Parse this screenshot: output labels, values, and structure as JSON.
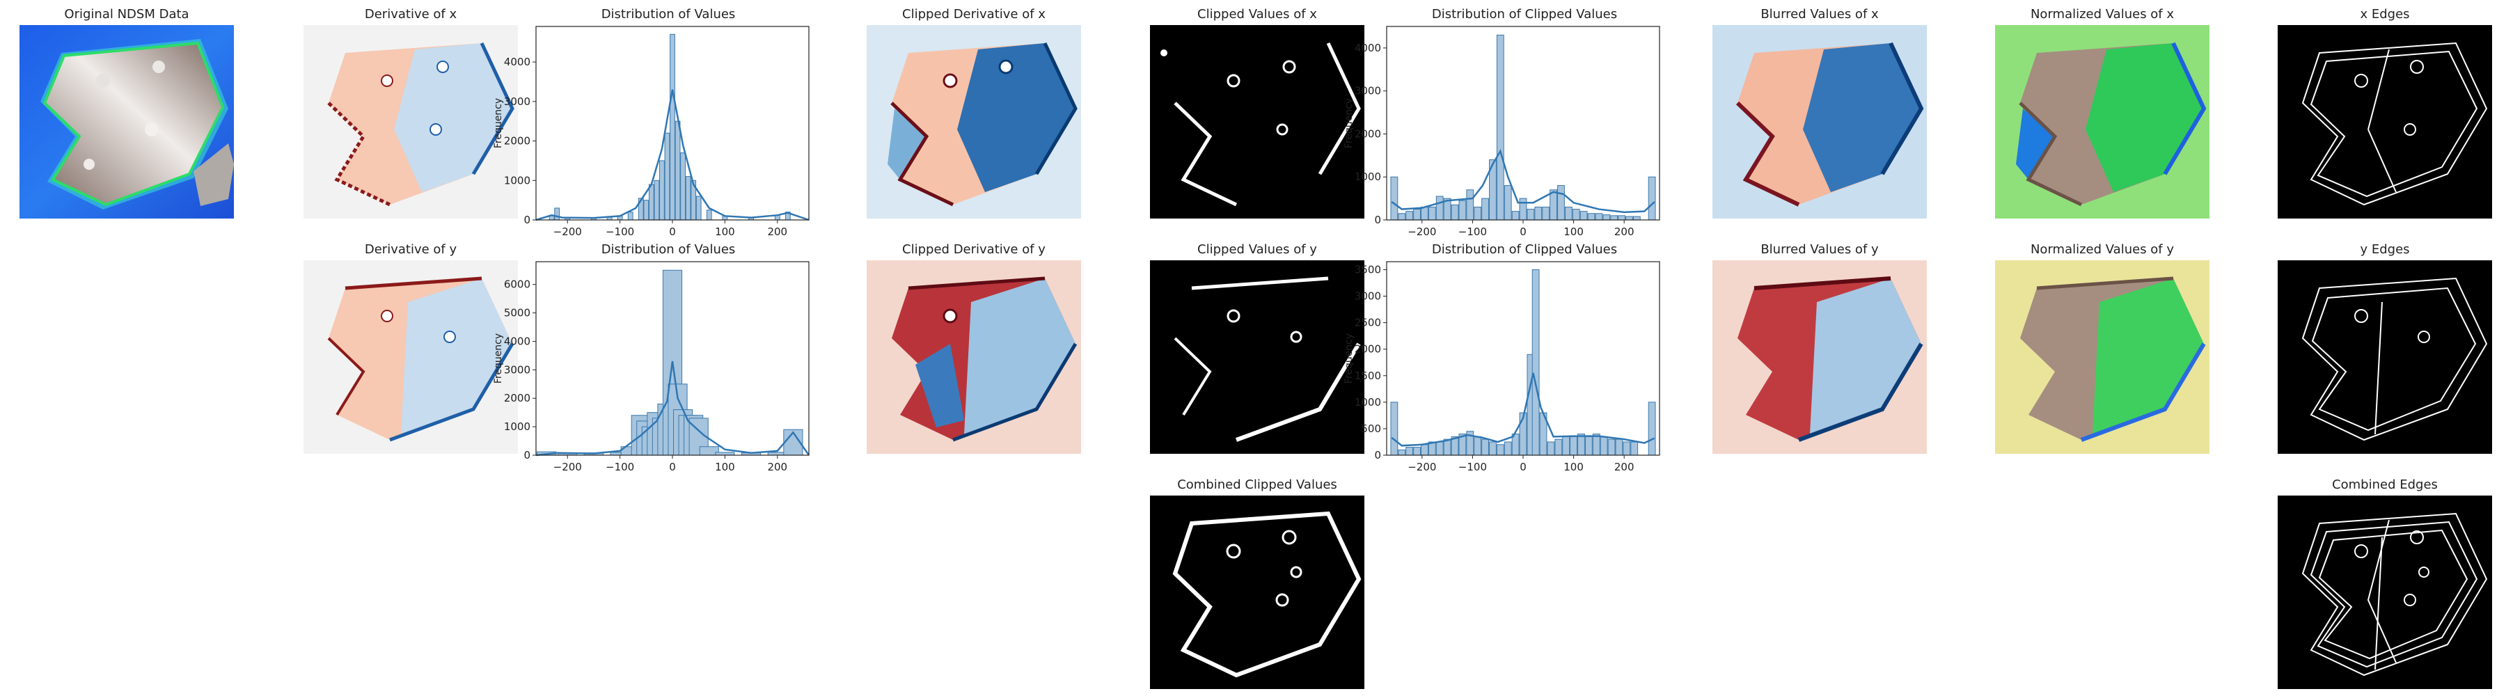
{
  "panels": {
    "original": "Original NDSM Data",
    "deriv_x": "Derivative of x",
    "deriv_y": "Derivative of y",
    "dist_x": "Distribution of Values",
    "dist_y": "Distribution of Values",
    "clip_deriv_x": "Clipped Derivative of x",
    "clip_deriv_y": "Clipped Derivative of y",
    "clip_vals_x": "Clipped Values  of x",
    "clip_vals_y": "Clipped Values  of y",
    "combined_clip": "Combined Clipped Values",
    "dist_clip_x": "Distribution of Clipped Values",
    "dist_clip_y": "Distribution of Clipped Values",
    "blur_x": "Blurred Values of x",
    "blur_y": "Blurred Values of y",
    "norm_x": "Normalized Values of x",
    "norm_y": "Normalized Values of y",
    "edges_x": "x Edges",
    "edges_y": "y Edges",
    "edges_combined": "Combined Edges"
  },
  "colors": {
    "hist_bar": "#a6c4de",
    "hist_edge": "#3b78ab",
    "kde": "#2f77b4"
  },
  "chart_data": [
    {
      "type": "bar",
      "title": "Distribution of Values",
      "ylabel": "Frequency",
      "xlim": [
        -260,
        260
      ],
      "ylim": [
        0,
        4900
      ],
      "xticks": [
        -200,
        -100,
        0,
        100,
        200
      ],
      "yticks": [
        0,
        1000,
        2000,
        3000,
        4000
      ],
      "bins": [
        {
          "x": -230,
          "y": 120
        },
        {
          "x": -220,
          "y": 300
        },
        {
          "x": -200,
          "y": 60
        },
        {
          "x": -150,
          "y": 60
        },
        {
          "x": -120,
          "y": 80
        },
        {
          "x": -100,
          "y": 100
        },
        {
          "x": -80,
          "y": 200
        },
        {
          "x": -60,
          "y": 550
        },
        {
          "x": -50,
          "y": 500
        },
        {
          "x": -40,
          "y": 900
        },
        {
          "x": -30,
          "y": 1000
        },
        {
          "x": -20,
          "y": 1500
        },
        {
          "x": -10,
          "y": 2200
        },
        {
          "x": 0,
          "y": 4700
        },
        {
          "x": 10,
          "y": 2500
        },
        {
          "x": 20,
          "y": 1700
        },
        {
          "x": 30,
          "y": 1100
        },
        {
          "x": 40,
          "y": 1000
        },
        {
          "x": 50,
          "y": 600
        },
        {
          "x": 70,
          "y": 250
        },
        {
          "x": 100,
          "y": 100
        },
        {
          "x": 150,
          "y": 60
        },
        {
          "x": 200,
          "y": 120
        },
        {
          "x": 220,
          "y": 200
        }
      ],
      "kde": [
        [
          -260,
          0
        ],
        [
          -230,
          120
        ],
        [
          -210,
          60
        ],
        [
          -150,
          50
        ],
        [
          -100,
          100
        ],
        [
          -70,
          300
        ],
        [
          -40,
          900
        ],
        [
          -20,
          1800
        ],
        [
          0,
          3300
        ],
        [
          20,
          1900
        ],
        [
          40,
          900
        ],
        [
          70,
          300
        ],
        [
          100,
          100
        ],
        [
          150,
          60
        ],
        [
          200,
          120
        ],
        [
          220,
          180
        ],
        [
          260,
          0
        ]
      ]
    },
    {
      "type": "bar",
      "title": "Distribution of Values",
      "ylabel": "Frequency",
      "xlim": [
        -260,
        260
      ],
      "ylim": [
        0,
        6800
      ],
      "xticks": [
        -200,
        -100,
        0,
        100,
        200
      ],
      "yticks": [
        0,
        1000,
        2000,
        3000,
        4000,
        5000,
        6000
      ],
      "bins": [
        {
          "x": -240,
          "y": 120
        },
        {
          "x": -200,
          "y": 80
        },
        {
          "x": -150,
          "y": 80
        },
        {
          "x": -100,
          "y": 100
        },
        {
          "x": -80,
          "y": 300
        },
        {
          "x": -60,
          "y": 1400
        },
        {
          "x": -50,
          "y": 1200
        },
        {
          "x": -40,
          "y": 1000
        },
        {
          "x": -30,
          "y": 1500
        },
        {
          "x": -20,
          "y": 1300
        },
        {
          "x": -10,
          "y": 1800
        },
        {
          "x": 0,
          "y": 6500
        },
        {
          "x": 10,
          "y": 2500
        },
        {
          "x": 20,
          "y": 1600
        },
        {
          "x": 30,
          "y": 1400
        },
        {
          "x": 40,
          "y": 1400
        },
        {
          "x": 50,
          "y": 1300
        },
        {
          "x": 70,
          "y": 300
        },
        {
          "x": 100,
          "y": 100
        },
        {
          "x": 150,
          "y": 80
        },
        {
          "x": 200,
          "y": 100
        },
        {
          "x": 230,
          "y": 900
        }
      ],
      "kde": [
        [
          -260,
          0
        ],
        [
          -220,
          80
        ],
        [
          -150,
          60
        ],
        [
          -100,
          150
        ],
        [
          -60,
          700
        ],
        [
          -30,
          1200
        ],
        [
          -10,
          1900
        ],
        [
          0,
          3300
        ],
        [
          10,
          2000
        ],
        [
          30,
          1200
        ],
        [
          60,
          700
        ],
        [
          100,
          200
        ],
        [
          150,
          80
        ],
        [
          200,
          150
        ],
        [
          230,
          800
        ],
        [
          260,
          0
        ]
      ]
    },
    {
      "type": "bar",
      "title": "Distribution of Clipped Values",
      "ylabel": "Frequency",
      "xlim": [
        -270,
        270
      ],
      "ylim": [
        0,
        4500
      ],
      "xticks": [
        -200,
        -100,
        0,
        100,
        200
      ],
      "yticks": [
        0,
        1000,
        2000,
        3000,
        4000
      ],
      "bins": [
        {
          "x": -255,
          "y": 1000
        },
        {
          "x": -240,
          "y": 150
        },
        {
          "x": -225,
          "y": 200
        },
        {
          "x": -210,
          "y": 250
        },
        {
          "x": -195,
          "y": 300
        },
        {
          "x": -180,
          "y": 300
        },
        {
          "x": -165,
          "y": 550
        },
        {
          "x": -150,
          "y": 500
        },
        {
          "x": -135,
          "y": 350
        },
        {
          "x": -120,
          "y": 450
        },
        {
          "x": -105,
          "y": 700
        },
        {
          "x": -90,
          "y": 300
        },
        {
          "x": -75,
          "y": 500
        },
        {
          "x": -60,
          "y": 1400
        },
        {
          "x": -45,
          "y": 4300
        },
        {
          "x": -30,
          "y": 800
        },
        {
          "x": -15,
          "y": 200
        },
        {
          "x": 0,
          "y": 500
        },
        {
          "x": 15,
          "y": 250
        },
        {
          "x": 30,
          "y": 300
        },
        {
          "x": 45,
          "y": 300
        },
        {
          "x": 60,
          "y": 700
        },
        {
          "x": 75,
          "y": 800
        },
        {
          "x": 90,
          "y": 300
        },
        {
          "x": 105,
          "y": 250
        },
        {
          "x": 120,
          "y": 200
        },
        {
          "x": 135,
          "y": 150
        },
        {
          "x": 150,
          "y": 150
        },
        {
          "x": 165,
          "y": 120
        },
        {
          "x": 180,
          "y": 100
        },
        {
          "x": 195,
          "y": 100
        },
        {
          "x": 210,
          "y": 80
        },
        {
          "x": 225,
          "y": 80
        },
        {
          "x": 255,
          "y": 1000
        }
      ],
      "kde": [
        [
          -260,
          420
        ],
        [
          -240,
          250
        ],
        [
          -200,
          280
        ],
        [
          -150,
          450
        ],
        [
          -100,
          500
        ],
        [
          -80,
          800
        ],
        [
          -60,
          1300
        ],
        [
          -45,
          1600
        ],
        [
          -30,
          1000
        ],
        [
          -10,
          400
        ],
        [
          20,
          400
        ],
        [
          60,
          650
        ],
        [
          80,
          600
        ],
        [
          100,
          400
        ],
        [
          150,
          250
        ],
        [
          200,
          180
        ],
        [
          240,
          200
        ],
        [
          260,
          420
        ]
      ]
    },
    {
      "type": "bar",
      "title": "Distribution of Clipped Values",
      "ylabel": "Frequency",
      "xlim": [
        -270,
        270
      ],
      "ylim": [
        0,
        3650
      ],
      "xticks": [
        -200,
        -100,
        0,
        100,
        200
      ],
      "yticks": [
        0,
        500,
        1000,
        1500,
        2000,
        2500,
        3000,
        3500
      ],
      "bins": [
        {
          "x": -255,
          "y": 1000
        },
        {
          "x": -240,
          "y": 100
        },
        {
          "x": -225,
          "y": 150
        },
        {
          "x": -210,
          "y": 150
        },
        {
          "x": -195,
          "y": 200
        },
        {
          "x": -180,
          "y": 250
        },
        {
          "x": -165,
          "y": 250
        },
        {
          "x": -150,
          "y": 300
        },
        {
          "x": -135,
          "y": 350
        },
        {
          "x": -120,
          "y": 400
        },
        {
          "x": -105,
          "y": 450
        },
        {
          "x": -90,
          "y": 350
        },
        {
          "x": -75,
          "y": 300
        },
        {
          "x": -60,
          "y": 250
        },
        {
          "x": -45,
          "y": 200
        },
        {
          "x": -30,
          "y": 250
        },
        {
          "x": -15,
          "y": 400
        },
        {
          "x": 0,
          "y": 800
        },
        {
          "x": 15,
          "y": 1900
        },
        {
          "x": 25,
          "y": 3500
        },
        {
          "x": 40,
          "y": 800
        },
        {
          "x": 55,
          "y": 250
        },
        {
          "x": 70,
          "y": 300
        },
        {
          "x": 85,
          "y": 350
        },
        {
          "x": 100,
          "y": 350
        },
        {
          "x": 115,
          "y": 400
        },
        {
          "x": 130,
          "y": 350
        },
        {
          "x": 145,
          "y": 400
        },
        {
          "x": 160,
          "y": 350
        },
        {
          "x": 175,
          "y": 300
        },
        {
          "x": 190,
          "y": 300
        },
        {
          "x": 205,
          "y": 250
        },
        {
          "x": 220,
          "y": 250
        },
        {
          "x": 255,
          "y": 1000
        }
      ],
      "kde": [
        [
          -260,
          330
        ],
        [
          -240,
          180
        ],
        [
          -200,
          200
        ],
        [
          -150,
          280
        ],
        [
          -110,
          380
        ],
        [
          -80,
          330
        ],
        [
          -50,
          250
        ],
        [
          -20,
          350
        ],
        [
          0,
          700
        ],
        [
          20,
          1550
        ],
        [
          35,
          900
        ],
        [
          60,
          350
        ],
        [
          100,
          360
        ],
        [
          150,
          360
        ],
        [
          200,
          300
        ],
        [
          240,
          230
        ],
        [
          260,
          320
        ]
      ]
    }
  ]
}
